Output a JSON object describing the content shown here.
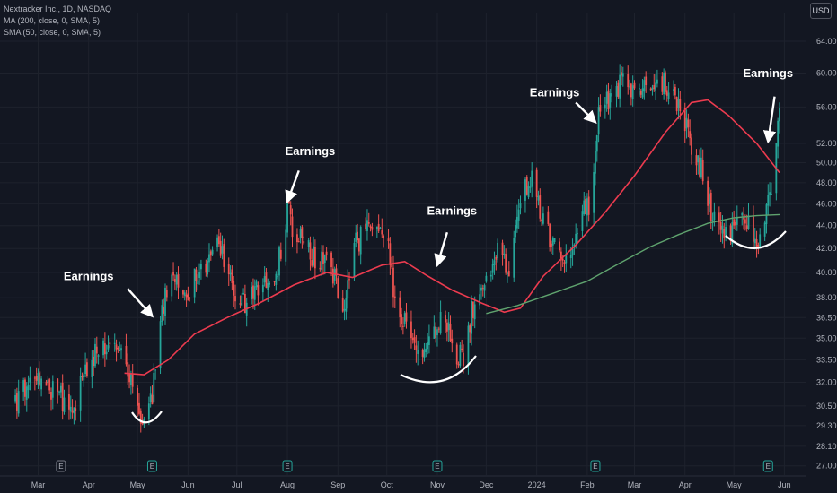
{
  "legend": {
    "title": "Nextracker Inc., 1D, NASDAQ",
    "ma200": "MA (200, close, 0, SMA, 5)",
    "sma50": "SMA (50, close, 0, SMA, 5)"
  },
  "currency": "USD",
  "colors": {
    "background": "#131722",
    "up": "#26a69a",
    "down": "#ef5350",
    "ma200": "#ec3b4f",
    "sma50": "#5fa36e",
    "annotation": "#ffffff"
  },
  "chart_data": {
    "type": "candlestick",
    "y_axis": {
      "scale": "log",
      "ticks": [
        "27.00",
        "28.10",
        "29.30",
        "30.50",
        "32.00",
        "33.50",
        "35.00",
        "36.50",
        "38.00",
        "40.00",
        "42.00",
        "44.00",
        "46.00",
        "48.00",
        "50.00",
        "52.00",
        "56.00",
        "60.00",
        "64.00"
      ],
      "range": [
        26.5,
        66.5
      ]
    },
    "x_axis": {
      "ticks": [
        "Mar",
        "Apr",
        "May",
        "Jun",
        "Jul",
        "Aug",
        "Sep",
        "Oct",
        "Nov",
        "Dec",
        "2024",
        "Feb",
        "Mar",
        "Apr",
        "May",
        "Jun"
      ]
    },
    "price_path": [
      {
        "date": "2023-02-15",
        "price": 30.8
      },
      {
        "date": "2023-02-25",
        "price": 32.0
      },
      {
        "date": "2023-03-08",
        "price": 31.6
      },
      {
        "date": "2023-03-15",
        "price": 31.0
      },
      {
        "date": "2023-03-22",
        "price": 30.2
      },
      {
        "date": "2023-04-01",
        "price": 33.5
      },
      {
        "date": "2023-04-08",
        "price": 34.5
      },
      {
        "date": "2023-04-15",
        "price": 34.8
      },
      {
        "date": "2023-04-22",
        "price": 33.4
      },
      {
        "date": "2023-04-28",
        "price": 31.5
      },
      {
        "date": "2023-05-03",
        "price": 29.8
      },
      {
        "date": "2023-05-10",
        "price": 31.2
      },
      {
        "date": "2023-05-15",
        "price": 37.0
      },
      {
        "date": "2023-05-22",
        "price": 39.0
      },
      {
        "date": "2023-06-01",
        "price": 38.5
      },
      {
        "date": "2023-06-12",
        "price": 41.0
      },
      {
        "date": "2023-06-20",
        "price": 42.2
      },
      {
        "date": "2023-06-28",
        "price": 39.0
      },
      {
        "date": "2023-07-05",
        "price": 37.5
      },
      {
        "date": "2023-07-15",
        "price": 38.5
      },
      {
        "date": "2023-07-25",
        "price": 39.8
      },
      {
        "date": "2023-08-01",
        "price": 45.5
      },
      {
        "date": "2023-08-05",
        "price": 43.5
      },
      {
        "date": "2023-08-15",
        "price": 41.5
      },
      {
        "date": "2023-08-28",
        "price": 40.5
      },
      {
        "date": "2023-09-05",
        "price": 37.0
      },
      {
        "date": "2023-09-12",
        "price": 42.5
      },
      {
        "date": "2023-09-22",
        "price": 44.0
      },
      {
        "date": "2023-10-01",
        "price": 42.5
      },
      {
        "date": "2023-10-05",
        "price": 39.0
      },
      {
        "date": "2023-10-12",
        "price": 36.0
      },
      {
        "date": "2023-10-20",
        "price": 33.5
      },
      {
        "date": "2023-10-28",
        "price": 35.0
      },
      {
        "date": "2023-11-05",
        "price": 37.0
      },
      {
        "date": "2023-11-12",
        "price": 34.0
      },
      {
        "date": "2023-11-18",
        "price": 33.5
      },
      {
        "date": "2023-11-22",
        "price": 37.0
      },
      {
        "date": "2023-11-30",
        "price": 39.5
      },
      {
        "date": "2023-12-08",
        "price": 41.5
      },
      {
        "date": "2023-12-15",
        "price": 40.5
      },
      {
        "date": "2023-12-22",
        "price": 47.0
      },
      {
        "date": "2023-12-29",
        "price": 48.5
      },
      {
        "date": "2024-01-05",
        "price": 44.5
      },
      {
        "date": "2024-01-12",
        "price": 42.0
      },
      {
        "date": "2024-01-20",
        "price": 41.5
      },
      {
        "date": "2024-01-28",
        "price": 45.0
      },
      {
        "date": "2024-02-03",
        "price": 46.0
      },
      {
        "date": "2024-02-08",
        "price": 55.0
      },
      {
        "date": "2024-02-15",
        "price": 57.0
      },
      {
        "date": "2024-02-22",
        "price": 59.0
      },
      {
        "date": "2024-03-01",
        "price": 57.5
      },
      {
        "date": "2024-03-08",
        "price": 58.0
      },
      {
        "date": "2024-03-15",
        "price": 59.5
      },
      {
        "date": "2024-03-22",
        "price": 58.0
      },
      {
        "date": "2024-03-29",
        "price": 56.5
      },
      {
        "date": "2024-04-05",
        "price": 52.0
      },
      {
        "date": "2024-04-12",
        "price": 49.0
      },
      {
        "date": "2024-04-18",
        "price": 44.5
      },
      {
        "date": "2024-04-25",
        "price": 43.0
      },
      {
        "date": "2024-05-02",
        "price": 44.0
      },
      {
        "date": "2024-05-08",
        "price": 44.5
      },
      {
        "date": "2024-05-15",
        "price": 42.5
      },
      {
        "date": "2024-05-20",
        "price": 44.0
      },
      {
        "date": "2024-05-23",
        "price": 46.5
      },
      {
        "date": "2024-05-27",
        "price": 52.5
      },
      {
        "date": "2024-05-29",
        "price": 56.0
      }
    ],
    "series": [
      {
        "name": "MA (200, close, 0, SMA, 5)",
        "color": "#ec3b4f",
        "points": [
          {
            "date": "2023-04-23",
            "value": 32.6
          },
          {
            "date": "2023-05-05",
            "value": 32.5
          },
          {
            "date": "2023-05-20",
            "value": 33.5
          },
          {
            "date": "2023-06-05",
            "value": 35.3
          },
          {
            "date": "2023-06-25",
            "value": 36.5
          },
          {
            "date": "2023-07-15",
            "value": 37.6
          },
          {
            "date": "2023-08-05",
            "value": 39.0
          },
          {
            "date": "2023-08-25",
            "value": 40.0
          },
          {
            "date": "2023-09-10",
            "value": 39.6
          },
          {
            "date": "2023-09-28",
            "value": 40.6
          },
          {
            "date": "2023-10-12",
            "value": 40.9
          },
          {
            "date": "2023-10-25",
            "value": 39.8
          },
          {
            "date": "2023-11-10",
            "value": 38.6
          },
          {
            "date": "2023-11-28",
            "value": 37.6
          },
          {
            "date": "2023-12-12",
            "value": 36.9
          },
          {
            "date": "2023-12-22",
            "value": 37.2
          },
          {
            "date": "2024-01-05",
            "value": 39.7
          },
          {
            "date": "2024-01-25",
            "value": 42.3
          },
          {
            "date": "2024-02-12",
            "value": 45.2
          },
          {
            "date": "2024-03-01",
            "value": 48.7
          },
          {
            "date": "2024-03-20",
            "value": 53.2
          },
          {
            "date": "2024-04-05",
            "value": 56.5
          },
          {
            "date": "2024-04-15",
            "value": 56.8
          },
          {
            "date": "2024-04-28",
            "value": 55.0
          },
          {
            "date": "2024-05-15",
            "value": 52.0
          },
          {
            "date": "2024-05-29",
            "value": 49.0
          }
        ]
      },
      {
        "name": "SMA (50, close, 0, SMA, 5)",
        "color": "#5fa36e",
        "points": [
          {
            "date": "2023-12-01",
            "value": 36.8
          },
          {
            "date": "2023-12-20",
            "value": 37.4
          },
          {
            "date": "2024-01-10",
            "value": 38.3
          },
          {
            "date": "2024-02-01",
            "value": 39.3
          },
          {
            "date": "2024-02-20",
            "value": 40.7
          },
          {
            "date": "2024-03-10",
            "value": 42.1
          },
          {
            "date": "2024-03-28",
            "value": 43.2
          },
          {
            "date": "2024-04-15",
            "value": 44.2
          },
          {
            "date": "2024-05-01",
            "value": 44.7
          },
          {
            "date": "2024-05-15",
            "value": 44.9
          },
          {
            "date": "2024-05-29",
            "value": 45.0
          }
        ]
      }
    ],
    "annotations": [
      {
        "text": "Earnings",
        "label_date": "2023-04-01",
        "label_price": 39.4,
        "arrow_from": {
          "date": "2023-04-25",
          "price": 38.7
        },
        "arrow_to": {
          "date": "2023-05-10",
          "price": 36.6
        }
      },
      {
        "text": "Earnings",
        "label_date": "2023-08-15",
        "label_price": 50.8,
        "arrow_from": {
          "date": "2023-08-08",
          "price": 49.2
        },
        "arrow_to": {
          "date": "2023-08-01",
          "price": 46.2
        }
      },
      {
        "text": "Earnings",
        "label_date": "2023-11-10",
        "label_price": 45.0,
        "arrow_from": {
          "date": "2023-11-07",
          "price": 43.4
        },
        "arrow_to": {
          "date": "2023-11-01",
          "price": 40.6
        }
      },
      {
        "text": "Earnings",
        "label_date": "2024-01-12",
        "label_price": 57.2,
        "arrow_from": {
          "date": "2024-01-25",
          "price": 56.5
        },
        "arrow_to": {
          "date": "2024-02-06",
          "price": 54.3
        }
      },
      {
        "text": "Earnings",
        "label_date": "2024-05-22",
        "label_price": 59.5,
        "arrow_from": {
          "date": "2024-05-26",
          "price": 57.2
        },
        "arrow_to": {
          "date": "2024-05-22",
          "price": 52.2
        }
      }
    ],
    "event_markers": [
      "E",
      "E",
      "E",
      "E",
      "E",
      "E"
    ]
  }
}
